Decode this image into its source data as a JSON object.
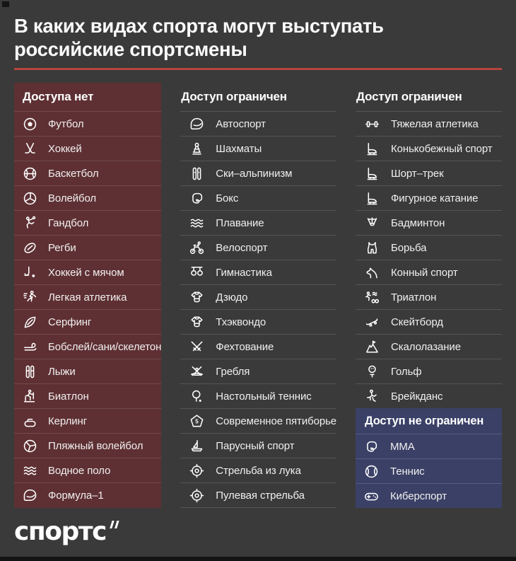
{
  "theme": {
    "page_bg": "#3a3a3a",
    "accent_red": "#b5453e",
    "no_access_bg": "#5e3033",
    "unrestricted_bg": "#3a4066",
    "icon_color": "#ffffff"
  },
  "title_line1": "В каких видах спорта могут выступать",
  "title_line2": "российские спортсмены",
  "columns": [
    {
      "id": "no-access",
      "style": "red",
      "header": "Доступа нет",
      "items": [
        {
          "label": "Футбол",
          "icon": "soccer-ball-icon"
        },
        {
          "label": "Хоккей",
          "icon": "hockey-sticks-icon"
        },
        {
          "label": "Баскетбол",
          "icon": "basketball-icon"
        },
        {
          "label": "Волейбол",
          "icon": "volleyball-icon"
        },
        {
          "label": "Гандбол",
          "icon": "handball-player-icon"
        },
        {
          "label": "Регби",
          "icon": "rugby-ball-icon"
        },
        {
          "label": "Хоккей с мячом",
          "icon": "bandy-stick-icon"
        },
        {
          "label": "Легкая атлетика",
          "icon": "runner-icon"
        },
        {
          "label": "Серфинг",
          "icon": "surfboard-icon"
        },
        {
          "label": "Бобслей/сани/скелетон",
          "icon": "sled-icon"
        },
        {
          "label": "Лыжи",
          "icon": "skis-icon"
        },
        {
          "label": "Биатлон",
          "icon": "biathlon-skier-icon"
        },
        {
          "label": "Керлинг",
          "icon": "curling-stone-icon"
        },
        {
          "label": "Пляжный волейбол",
          "icon": "beach-volleyball-icon"
        },
        {
          "label": "Водное поло",
          "icon": "waves-icon"
        },
        {
          "label": "Формула–1",
          "icon": "racing-helmet-icon"
        }
      ]
    },
    {
      "id": "limited-1",
      "style": "gray",
      "header": "Доступ ограничен",
      "items": [
        {
          "label": "Автоспорт",
          "icon": "racing-helmet-icon"
        },
        {
          "label": "Шахматы",
          "icon": "chess-pawn-icon"
        },
        {
          "label": "Ски–альпинизм",
          "icon": "ski-mountaineering-icon"
        },
        {
          "label": "Бокс",
          "icon": "boxing-glove-icon"
        },
        {
          "label": "Плавание",
          "icon": "waves-icon"
        },
        {
          "label": "Велоспорт",
          "icon": "cyclist-icon"
        },
        {
          "label": "Гимнастика",
          "icon": "gymnastics-rings-icon"
        },
        {
          "label": "Дзюдо",
          "icon": "kimono-icon"
        },
        {
          "label": "Тхэквондо",
          "icon": "kimono-icon"
        },
        {
          "label": "Фехтование",
          "icon": "crossed-swords-icon"
        },
        {
          "label": "Гребля",
          "icon": "kayak-icon"
        },
        {
          "label": "Настольный теннис",
          "icon": "table-tennis-paddle-icon"
        },
        {
          "label": "Современное пятиборье",
          "icon": "pentagon-five-icon"
        },
        {
          "label": "Парусный спорт",
          "icon": "sailboat-icon"
        },
        {
          "label": "Стрельба из лука",
          "icon": "target-icon"
        },
        {
          "label": "Пулевая стрельба",
          "icon": "target-icon"
        }
      ]
    },
    {
      "id": "limited-2",
      "style": "gray",
      "header": "Доступ ограничен",
      "items": [
        {
          "label": "Тяжелая атлетика",
          "icon": "dumbbell-icon"
        },
        {
          "label": "Конькобежный спорт",
          "icon": "ice-skate-icon"
        },
        {
          "label": "Шорт–трек",
          "icon": "ice-skate-icon"
        },
        {
          "label": "Фигурное катание",
          "icon": "ice-skate-icon"
        },
        {
          "label": "Бадминтон",
          "icon": "shuttlecock-icon"
        },
        {
          "label": "Борьба",
          "icon": "wrestling-singlet-icon"
        },
        {
          "label": "Конный спорт",
          "icon": "horse-head-icon"
        },
        {
          "label": "Триатлон",
          "icon": "triathlon-icon"
        },
        {
          "label": "Скейтборд",
          "icon": "skateboard-icon"
        },
        {
          "label": "Скалолазание",
          "icon": "climbing-mountain-icon"
        },
        {
          "label": "Гольф",
          "icon": "golf-ball-tee-icon"
        },
        {
          "label": "Брейкданс",
          "icon": "breakdancer-icon"
        }
      ],
      "subsection": {
        "id": "unrestricted",
        "style": "blue",
        "header": "Доступ не ограничен",
        "items": [
          {
            "label": "ММА",
            "icon": "boxing-glove-icon"
          },
          {
            "label": "Теннис",
            "icon": "tennis-ball-icon"
          },
          {
            "label": "Киберспорт",
            "icon": "gamepad-icon"
          }
        ]
      }
    }
  ],
  "footer": {
    "logo_text": "спортс"
  }
}
